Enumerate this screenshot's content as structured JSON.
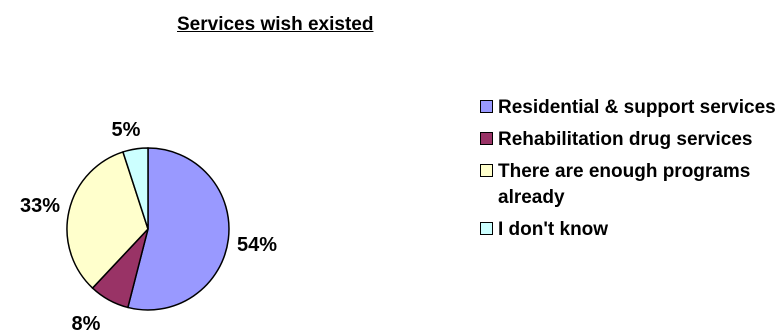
{
  "chart_data": {
    "type": "pie",
    "title": "Services wish existed",
    "start_angle_deg": 0,
    "direction": "clockwise",
    "slices": [
      {
        "name": "Residential & support services",
        "value": 54,
        "label": "54%",
        "color": "#9999FF"
      },
      {
        "name": "Rehabilitation drug services",
        "value": 8,
        "label": "8%",
        "color": "#993366"
      },
      {
        "name": "There are enough programs already",
        "value": 33,
        "label": "33%",
        "color": "#FFFFCC"
      },
      {
        "name": "I don't know",
        "value": 5,
        "label": "5%",
        "color": "#CCFFFF"
      }
    ],
    "legend_position": "right"
  }
}
